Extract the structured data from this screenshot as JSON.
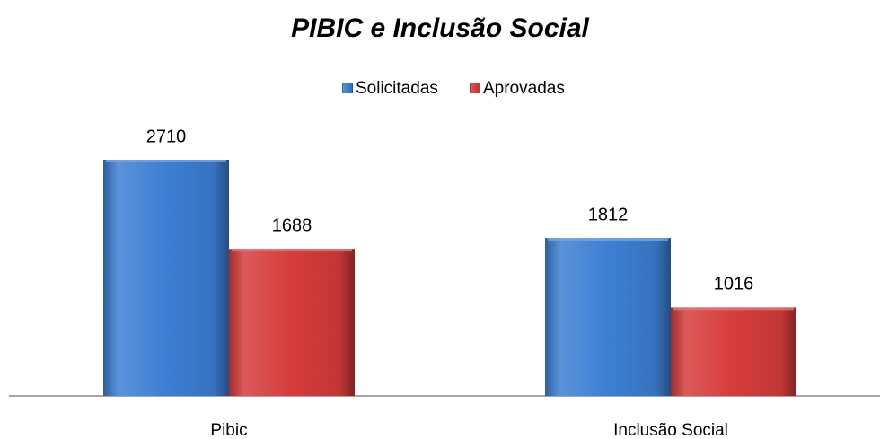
{
  "chart_data": {
    "type": "bar",
    "title": "PIBIC e Inclusão Social",
    "categories": [
      "Pibic",
      "Inclusão Social"
    ],
    "series": [
      {
        "name": "Solicitadas",
        "color": "#3d7fd4",
        "values": [
          2710,
          1812
        ]
      },
      {
        "name": "Aprovadas",
        "color": "#d63c3c",
        "values": [
          1688,
          1016
        ]
      }
    ]
  }
}
